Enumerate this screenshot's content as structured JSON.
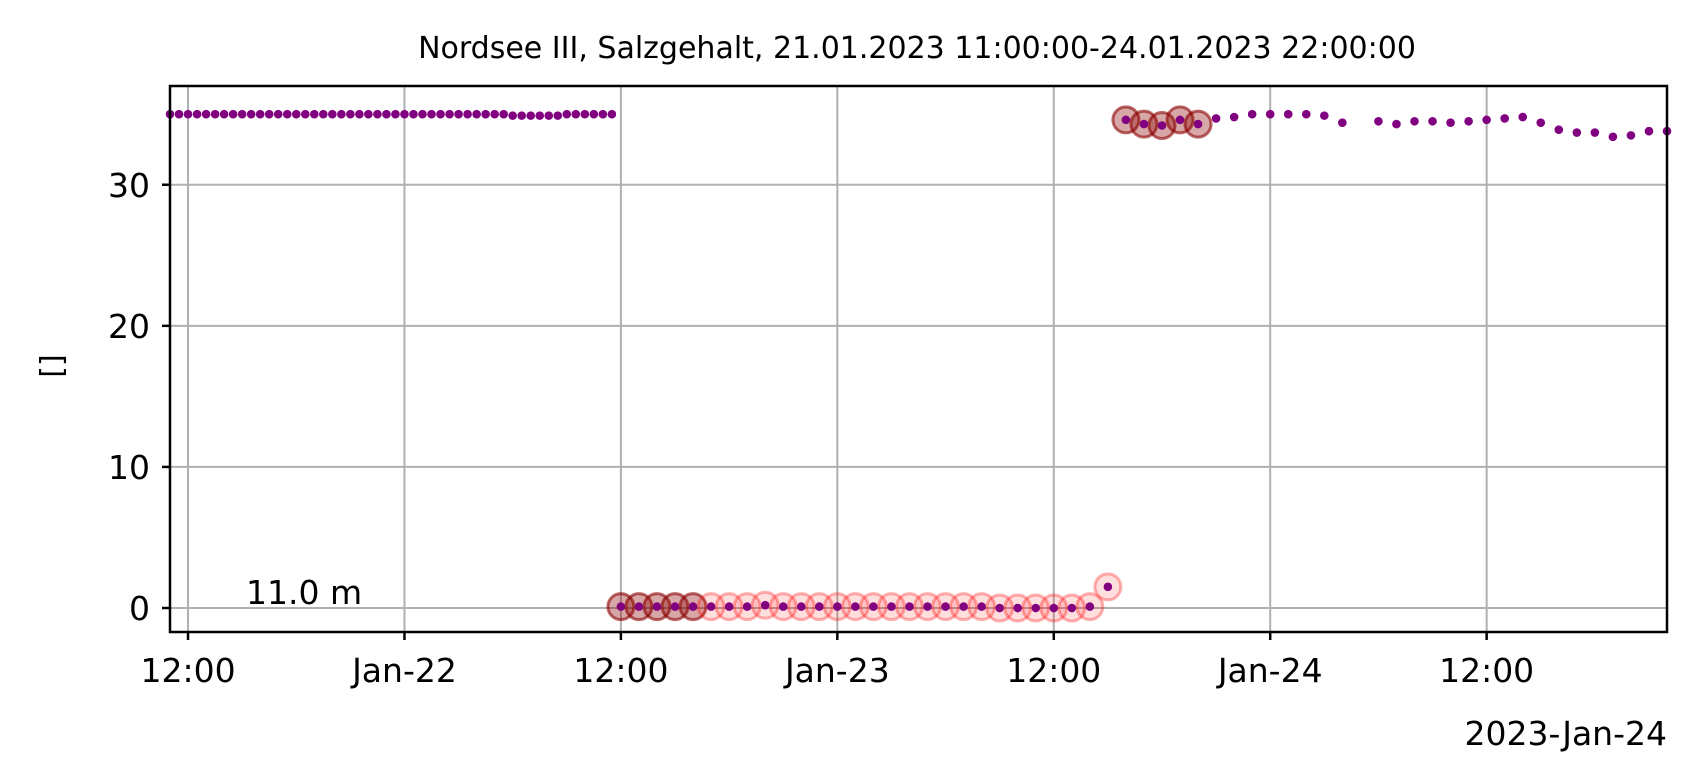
{
  "chart_data": {
    "type": "scatter",
    "title": "Nordsee III, Salzgehalt, 21.01.2023 11:00:00-24.01.2023 22:00:00",
    "xlabel": "",
    "ylabel": "[]",
    "x_range": [
      "2023-01-21 11:00",
      "2023-01-24 22:00"
    ],
    "ylim": [
      -1.7,
      37
    ],
    "grid": true,
    "x_ticks": [
      {
        "x": "2023-01-21 12:00",
        "label": "12:00"
      },
      {
        "x": "2023-01-22 00:00",
        "label": "Jan-22"
      },
      {
        "x": "2023-01-22 12:00",
        "label": "12:00"
      },
      {
        "x": "2023-01-23 00:00",
        "label": "Jan-23"
      },
      {
        "x": "2023-01-23 12:00",
        "label": "12:00"
      },
      {
        "x": "2023-01-24 00:00",
        "label": "Jan-24"
      },
      {
        "x": "2023-01-24 12:00",
        "label": "12:00"
      }
    ],
    "x_offset_label": "2023-Jan-24",
    "y_ticks": [
      0,
      10,
      20,
      30
    ],
    "annotation": "11.0 m",
    "colors": {
      "data": "#800080",
      "flag_red": "#ff0000",
      "flag_brown": "#8b0000",
      "grid": "#b0b0b0"
    },
    "series": [
      {
        "points": [
          [
            "2023-01-21 11:00",
            35.0
          ],
          [
            "2023-01-21 11:30",
            35.0
          ],
          [
            "2023-01-21 12:00",
            35.0
          ],
          [
            "2023-01-21 12:30",
            35.0
          ],
          [
            "2023-01-21 13:00",
            35.0
          ],
          [
            "2023-01-21 13:30",
            35.0
          ],
          [
            "2023-01-21 14:00",
            35.0
          ],
          [
            "2023-01-21 14:30",
            35.0
          ],
          [
            "2023-01-21 15:00",
            35.0
          ],
          [
            "2023-01-21 15:30",
            35.0
          ],
          [
            "2023-01-21 16:00",
            35.0
          ],
          [
            "2023-01-21 16:30",
            35.0
          ],
          [
            "2023-01-21 17:00",
            35.0
          ],
          [
            "2023-01-21 17:30",
            35.0
          ],
          [
            "2023-01-21 18:00",
            35.0
          ],
          [
            "2023-01-21 18:30",
            35.0
          ],
          [
            "2023-01-21 19:00",
            35.0
          ],
          [
            "2023-01-21 19:30",
            35.0
          ],
          [
            "2023-01-21 20:00",
            35.0
          ],
          [
            "2023-01-21 20:30",
            35.0
          ],
          [
            "2023-01-21 21:00",
            35.0
          ],
          [
            "2023-01-21 21:30",
            35.0
          ],
          [
            "2023-01-21 22:00",
            35.0
          ],
          [
            "2023-01-21 22:30",
            35.0
          ],
          [
            "2023-01-21 23:00",
            35.0
          ],
          [
            "2023-01-21 23:30",
            35.0
          ],
          [
            "2023-01-22 00:00",
            35.0
          ],
          [
            "2023-01-22 00:30",
            35.0
          ],
          [
            "2023-01-22 01:00",
            35.0
          ],
          [
            "2023-01-22 01:30",
            35.0
          ],
          [
            "2023-01-22 02:00",
            35.0
          ],
          [
            "2023-01-22 02:30",
            35.0
          ],
          [
            "2023-01-22 03:00",
            35.0
          ],
          [
            "2023-01-22 03:30",
            35.0
          ],
          [
            "2023-01-22 04:00",
            35.0
          ],
          [
            "2023-01-22 04:30",
            35.0
          ],
          [
            "2023-01-22 05:00",
            35.0
          ],
          [
            "2023-01-22 05:30",
            35.0
          ],
          [
            "2023-01-22 06:00",
            34.9
          ],
          [
            "2023-01-22 06:30",
            34.9
          ],
          [
            "2023-01-22 07:00",
            34.9
          ],
          [
            "2023-01-22 07:30",
            34.9
          ],
          [
            "2023-01-22 08:00",
            34.9
          ],
          [
            "2023-01-22 08:30",
            34.9
          ],
          [
            "2023-01-22 09:00",
            35.0
          ],
          [
            "2023-01-22 09:30",
            35.0
          ],
          [
            "2023-01-22 10:00",
            35.0
          ],
          [
            "2023-01-22 10:30",
            35.0
          ],
          [
            "2023-01-22 11:00",
            35.0
          ],
          [
            "2023-01-22 11:30",
            35.0
          ],
          [
            "2023-01-22 12:00",
            0.1,
            "brown"
          ],
          [
            "2023-01-22 13:00",
            0.1,
            "brown"
          ],
          [
            "2023-01-22 14:00",
            0.1,
            "brown"
          ],
          [
            "2023-01-22 15:00",
            0.1,
            "brown"
          ],
          [
            "2023-01-22 16:00",
            0.1,
            "brown"
          ],
          [
            "2023-01-22 17:00",
            0.1,
            "red"
          ],
          [
            "2023-01-22 18:00",
            0.1,
            "red"
          ],
          [
            "2023-01-22 19:00",
            0.1,
            "red"
          ],
          [
            "2023-01-22 20:00",
            0.2,
            "red"
          ],
          [
            "2023-01-22 21:00",
            0.1,
            "red"
          ],
          [
            "2023-01-22 22:00",
            0.1,
            "red"
          ],
          [
            "2023-01-22 23:00",
            0.1,
            "red"
          ],
          [
            "2023-01-23 00:00",
            0.1,
            "red"
          ],
          [
            "2023-01-23 01:00",
            0.1,
            "red"
          ],
          [
            "2023-01-23 02:00",
            0.1,
            "red"
          ],
          [
            "2023-01-23 03:00",
            0.1,
            "red"
          ],
          [
            "2023-01-23 04:00",
            0.1,
            "red"
          ],
          [
            "2023-01-23 05:00",
            0.1,
            "red"
          ],
          [
            "2023-01-23 06:00",
            0.1,
            "red"
          ],
          [
            "2023-01-23 07:00",
            0.1,
            "red"
          ],
          [
            "2023-01-23 08:00",
            0.1,
            "red"
          ],
          [
            "2023-01-23 09:00",
            0.0,
            "red"
          ],
          [
            "2023-01-23 10:00",
            0.0,
            "red"
          ],
          [
            "2023-01-23 11:00",
            0.0,
            "red"
          ],
          [
            "2023-01-23 12:00",
            0.0,
            "red"
          ],
          [
            "2023-01-23 13:00",
            0.0,
            "red"
          ],
          [
            "2023-01-23 14:00",
            0.1,
            "red"
          ],
          [
            "2023-01-23 15:00",
            1.5,
            "red"
          ],
          [
            "2023-01-23 16:00",
            34.6,
            "brown"
          ],
          [
            "2023-01-23 17:00",
            34.3,
            "brown"
          ],
          [
            "2023-01-23 18:00",
            34.2,
            "brown"
          ],
          [
            "2023-01-23 19:00",
            34.6,
            "brown"
          ],
          [
            "2023-01-23 20:00",
            34.3,
            "brown"
          ],
          [
            "2023-01-23 21:00",
            34.7
          ],
          [
            "2023-01-23 22:00",
            34.8
          ],
          [
            "2023-01-23 23:00",
            35.0
          ],
          [
            "2023-01-24 00:00",
            35.0
          ],
          [
            "2023-01-24 01:00",
            35.0
          ],
          [
            "2023-01-24 02:00",
            35.0
          ],
          [
            "2023-01-24 03:00",
            34.9
          ],
          [
            "2023-01-24 04:00",
            34.4
          ],
          [
            "2023-01-24 06:00",
            34.5
          ],
          [
            "2023-01-24 07:00",
            34.3
          ],
          [
            "2023-01-24 08:00",
            34.5
          ],
          [
            "2023-01-24 09:00",
            34.5
          ],
          [
            "2023-01-24 10:00",
            34.4
          ],
          [
            "2023-01-24 11:00",
            34.5
          ],
          [
            "2023-01-24 12:00",
            34.6
          ],
          [
            "2023-01-24 13:00",
            34.7
          ],
          [
            "2023-01-24 14:00",
            34.8
          ],
          [
            "2023-01-24 15:00",
            34.4
          ],
          [
            "2023-01-24 16:00",
            33.9
          ],
          [
            "2023-01-24 17:00",
            33.7
          ],
          [
            "2023-01-24 18:00",
            33.7
          ],
          [
            "2023-01-24 19:00",
            33.4
          ],
          [
            "2023-01-24 20:00",
            33.5
          ],
          [
            "2023-01-24 21:00",
            33.8
          ],
          [
            "2023-01-24 22:00",
            33.8
          ]
        ]
      }
    ]
  }
}
